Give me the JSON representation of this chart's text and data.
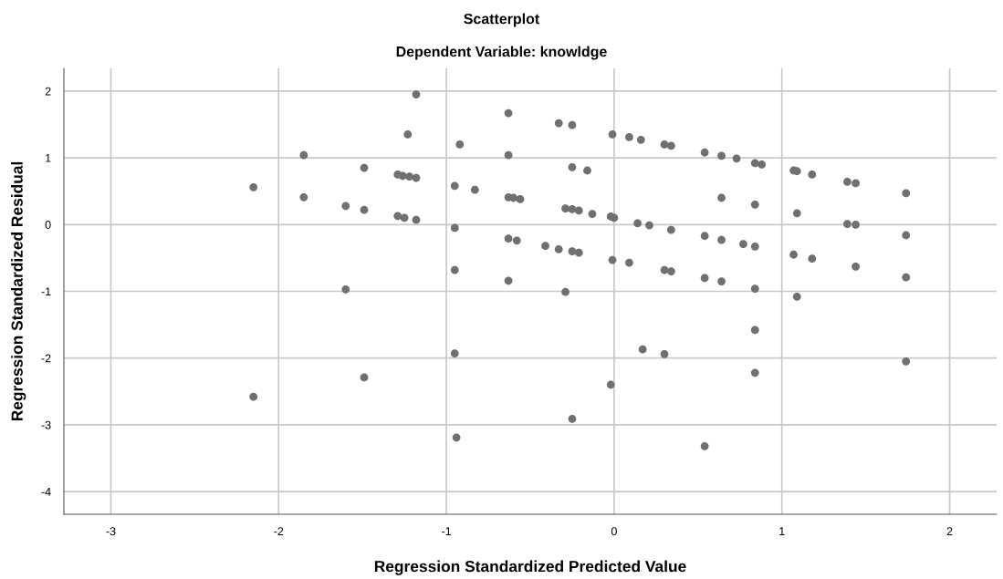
{
  "chart_data": {
    "type": "scatter",
    "title": "Scatterplot",
    "subtitle": "Dependent Variable: knowldge",
    "xlabel": "Regression Standardized Predicted Value",
    "ylabel": "Regression Standardized Residual",
    "xlim": [
      -3.28,
      2.28
    ],
    "ylim": [
      -4.34,
      2.34
    ],
    "xticks": [
      -3,
      -2,
      -1,
      0,
      1,
      2
    ],
    "yticks": [
      -4,
      -3,
      -2,
      -1,
      0,
      1,
      2
    ],
    "grid": true,
    "marker": "circle",
    "series": [
      {
        "color": "#707070",
        "x": [
          -1.18,
          -0.63,
          -1.23,
          -0.92,
          -1.85,
          -0.63,
          -1.49,
          -1.29,
          -1.26,
          -1.22,
          -1.18,
          -2.15,
          -0.95,
          -0.83,
          -1.85,
          -0.63,
          -0.6,
          -0.56,
          -1.6,
          -1.49,
          -1.29,
          -1.25,
          -1.18,
          -0.95,
          -0.63,
          -0.58,
          -0.95,
          -0.63,
          -1.6,
          -0.33,
          -0.25,
          -0.01,
          0.09,
          0.16,
          0.3,
          0.34,
          0.54,
          0.64,
          0.73,
          0.84,
          0.88,
          1.07,
          1.09,
          1.18,
          1.39,
          1.44,
          1.74,
          -0.25,
          -0.16,
          0.64,
          0.84,
          1.09,
          -0.29,
          -0.25,
          -0.21,
          -0.13,
          -0.02,
          0.0,
          0.14,
          0.21,
          0.34,
          1.39,
          1.44,
          1.74,
          -0.41,
          -0.33,
          -0.25,
          -0.21,
          0.54,
          0.64,
          0.77,
          0.84,
          -0.01,
          0.09,
          0.3,
          0.34,
          1.07,
          1.18,
          1.44,
          1.74,
          0.54,
          0.64,
          0.84,
          -0.29,
          1.09,
          0.84,
          0.17,
          0.3,
          1.74,
          0.84,
          -0.02,
          -0.25,
          0.54,
          -0.95,
          -1.49,
          -2.15,
          -0.94
        ],
        "values": [
          1.95,
          1.67,
          1.35,
          1.2,
          1.04,
          1.04,
          0.85,
          0.75,
          0.73,
          0.72,
          0.7,
          0.56,
          0.58,
          0.52,
          0.41,
          0.41,
          0.4,
          0.38,
          0.28,
          0.22,
          0.13,
          0.1,
          0.07,
          -0.05,
          -0.21,
          -0.24,
          -0.68,
          -0.84,
          -0.97,
          1.52,
          1.49,
          1.35,
          1.31,
          1.27,
          1.2,
          1.18,
          1.08,
          1.03,
          0.99,
          0.92,
          0.9,
          0.81,
          0.8,
          0.75,
          0.64,
          0.62,
          0.47,
          0.86,
          0.81,
          0.4,
          0.3,
          0.17,
          0.24,
          0.23,
          0.21,
          0.16,
          0.12,
          0.1,
          0.02,
          -0.01,
          -0.08,
          0.01,
          0.0,
          -0.16,
          -0.32,
          -0.37,
          -0.4,
          -0.42,
          -0.17,
          -0.23,
          -0.29,
          -0.33,
          -0.53,
          -0.57,
          -0.68,
          -0.7,
          -0.45,
          -0.51,
          -0.63,
          -0.79,
          -0.8,
          -0.85,
          -0.96,
          -1.01,
          -1.08,
          -1.58,
          -1.87,
          -1.94,
          -2.05,
          -2.22,
          -2.4,
          -2.91,
          -3.32,
          -1.93,
          -2.29,
          -2.58,
          -3.19
        ]
      }
    ]
  }
}
